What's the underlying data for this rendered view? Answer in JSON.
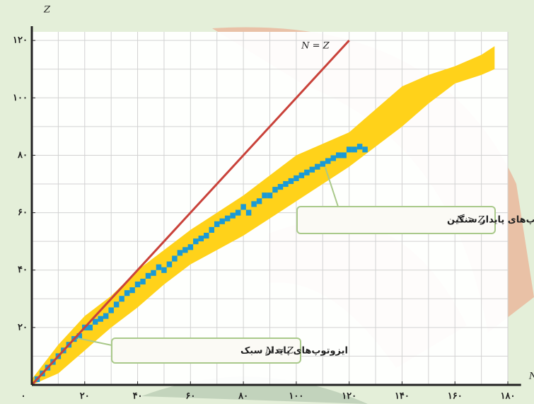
{
  "chart_data": {
    "type": "scatter",
    "x_label": "N",
    "y_label": "Z",
    "xlim": [
      0,
      185
    ],
    "ylim": [
      0,
      123
    ],
    "xticks": [
      {
        "value": 0,
        "label": "۰"
      },
      {
        "value": 20,
        "label": "۲۰"
      },
      {
        "value": 40,
        "label": "۴۰"
      },
      {
        "value": 60,
        "label": "۶۰"
      },
      {
        "value": 80,
        "label": "۸۰"
      },
      {
        "value": 100,
        "label": "۱۰۰"
      },
      {
        "value": 120,
        "label": "۱۲۰"
      },
      {
        "value": 140,
        "label": "۱۴۰"
      },
      {
        "value": 160,
        "label": "۱۶۰"
      },
      {
        "value": 180,
        "label": "۱۸۰"
      }
    ],
    "yticks": [
      {
        "value": 20,
        "label": "۲۰"
      },
      {
        "value": 40,
        "label": "۴۰"
      },
      {
        "value": 60,
        "label": "۶۰"
      },
      {
        "value": 80,
        "label": "۸۰"
      },
      {
        "value": 100,
        "label": "۱۰۰"
      },
      {
        "value": 120,
        "label": "۱۲۰"
      }
    ],
    "grid": true,
    "band": {
      "color": "#ffd21a",
      "x": [
        0,
        10,
        20,
        30,
        40,
        50,
        60,
        70,
        80,
        90,
        100,
        110,
        120,
        130,
        140,
        150,
        160,
        170,
        175
      ],
      "high": [
        2,
        14,
        24,
        31,
        40,
        47,
        54,
        60,
        66,
        73,
        80,
        84,
        88,
        96,
        104,
        108,
        111,
        115,
        118
      ],
      "low": [
        0,
        4,
        12,
        20,
        27,
        35,
        42,
        47,
        52,
        58,
        64,
        70,
        76,
        83,
        90,
        98,
        105,
        108,
        110
      ]
    },
    "stable": {
      "color": "#1a9ad6",
      "x": [
        2,
        4,
        6,
        8,
        10,
        12,
        14,
        16,
        18,
        20,
        22,
        24,
        26,
        28,
        30,
        32,
        34,
        36,
        38,
        40,
        42,
        44,
        46,
        48,
        50,
        52,
        54,
        56,
        58,
        60,
        62,
        64,
        66,
        68,
        70,
        72,
        74,
        76,
        78,
        80,
        82,
        84,
        86,
        88,
        90,
        92,
        94,
        96,
        98,
        100,
        102,
        104,
        106,
        108,
        110,
        112,
        114,
        116,
        118,
        120,
        122,
        124,
        126
      ],
      "values": [
        2,
        4,
        6,
        8,
        10,
        12,
        14,
        16,
        17,
        20,
        20,
        22,
        23,
        24,
        26,
        28,
        30,
        32,
        33,
        35,
        36,
        38,
        39,
        41,
        40,
        42,
        44,
        46,
        47,
        48,
        50,
        51,
        52,
        54,
        56,
        57,
        58,
        59,
        60,
        62,
        60,
        63,
        64,
        66,
        66,
        68,
        69,
        70,
        71,
        72,
        73,
        74,
        75,
        76,
        77,
        78,
        79,
        80,
        80,
        82,
        82,
        83,
        82
      ]
    },
    "reference_line": {
      "label": "N = Z",
      "color": "#c9423a",
      "x": [
        0,
        120
      ],
      "values": [
        0,
        120
      ]
    },
    "annotations": [
      {
        "text": "ایزوتوپ‌های پایدار سبک",
        "condition": "N ≈ Z"
      },
      {
        "text": "ایزوتوپ‌های پایدار سنگین",
        "condition": "N > Z"
      }
    ]
  }
}
